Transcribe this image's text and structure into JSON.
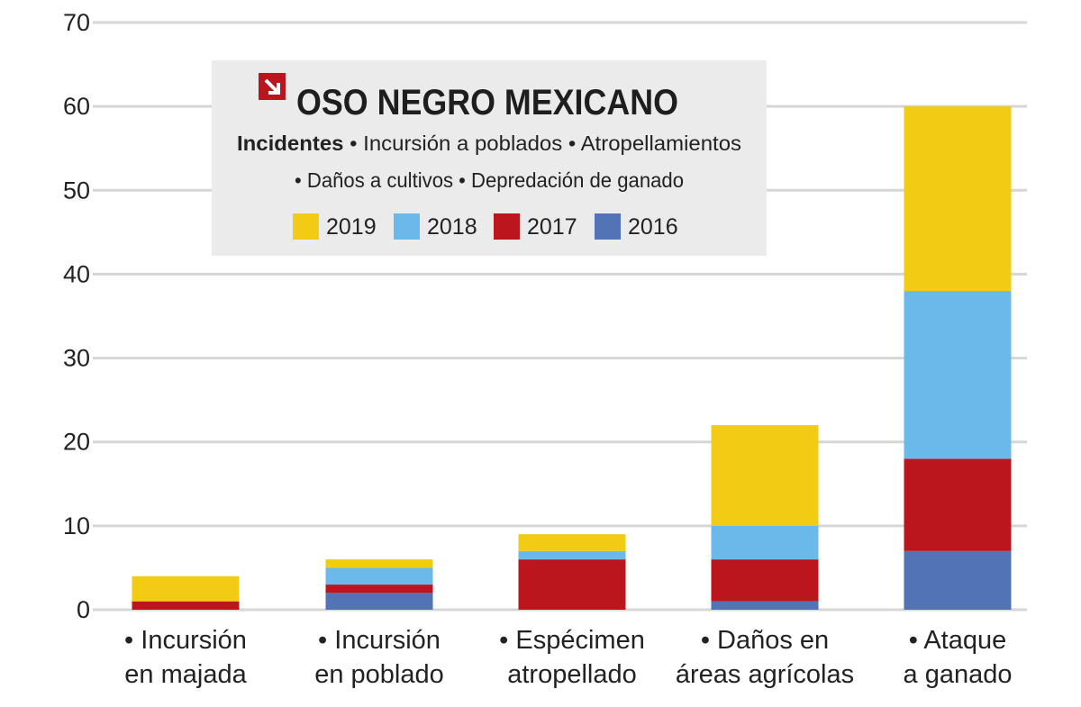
{
  "chart_data": {
    "type": "bar",
    "stacked": true,
    "title": "OSO NEGRO MEXICANO",
    "subtitle": {
      "bold": "Incidentes",
      "line1": "• Incursión a poblados  • Atropellamientos",
      "line2": "• Daños a cultivos  • Depredación de ganado"
    },
    "categories": [
      [
        "• Incursión",
        "en majada"
      ],
      [
        "• Incursión",
        "en poblado"
      ],
      [
        "• Espécimen",
        "atropellado"
      ],
      [
        "• Daños en",
        "áreas agrícolas"
      ],
      [
        "• Ataque",
        "a ganado"
      ]
    ],
    "series": [
      {
        "name": "2016",
        "color": "#5273b6",
        "values": [
          0,
          2,
          0,
          1,
          7
        ]
      },
      {
        "name": "2017",
        "color": "#bb151e",
        "values": [
          1,
          1,
          6,
          5,
          11
        ]
      },
      {
        "name": "2018",
        "color": "#6bb9ea",
        "values": [
          0,
          2,
          1,
          4,
          20
        ]
      },
      {
        "name": "2019",
        "color": "#f2cb14",
        "values": [
          3,
          1,
          2,
          12,
          22
        ]
      }
    ],
    "legend_order": [
      "2019",
      "2018",
      "2017",
      "2016"
    ],
    "ylim": [
      0,
      70
    ],
    "yticks": [
      0,
      10,
      20,
      30,
      40,
      50,
      60,
      70
    ],
    "grid": true,
    "legend_placement": "top-left",
    "xlabel": "",
    "ylabel": ""
  }
}
